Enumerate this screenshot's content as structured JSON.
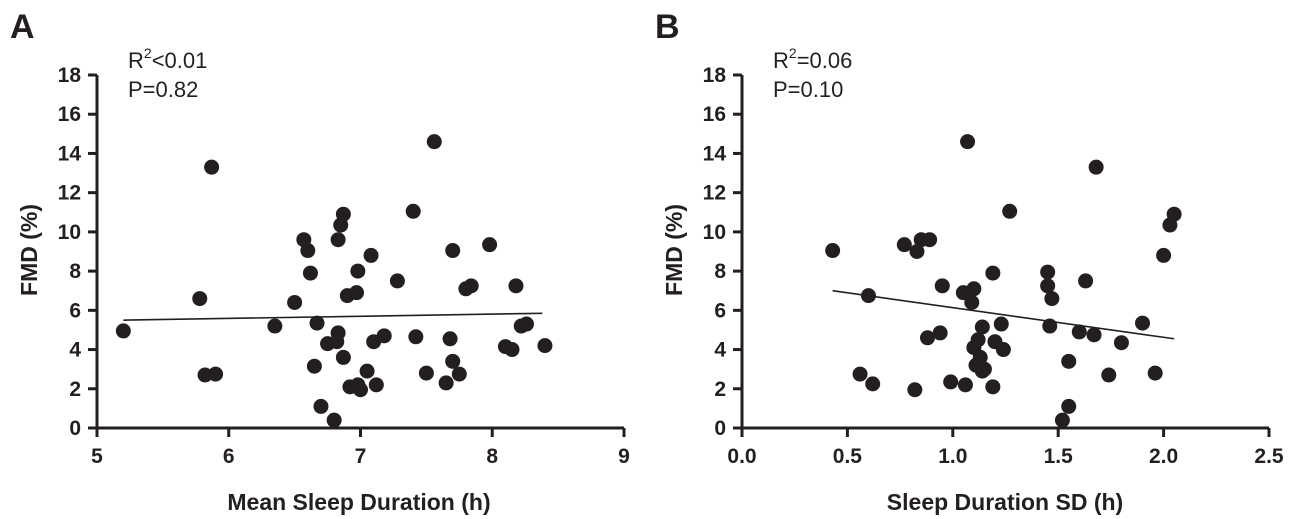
{
  "chart_data": [
    {
      "type": "scatter",
      "panel": "A",
      "xlabel": "Mean Sleep Duration (h)",
      "ylabel": "FMD (%)",
      "xlim": [
        5,
        9
      ],
      "ylim": [
        0,
        18
      ],
      "xticks": [
        5,
        6,
        7,
        8,
        9
      ],
      "xtick_labels": [
        "5",
        "6",
        "7",
        "8",
        "9"
      ],
      "yticks": [
        0,
        2,
        4,
        6,
        8,
        10,
        12,
        14,
        16,
        18
      ],
      "ytick_labels": [
        "0",
        "2",
        "4",
        "6",
        "8",
        "10",
        "12",
        "14",
        "16",
        "18"
      ],
      "stats": {
        "r2_prefix": "R",
        "r2_sup": "2",
        "r2_value": "<0.01",
        "p": "P=0.82"
      },
      "regression": {
        "x": [
          5.2,
          8.38
        ],
        "y": [
          5.5,
          5.85
        ]
      },
      "points": [
        [
          5.2,
          4.95
        ],
        [
          5.78,
          6.6
        ],
        [
          5.82,
          2.7
        ],
        [
          5.87,
          13.3
        ],
        [
          5.9,
          2.75
        ],
        [
          6.35,
          5.2
        ],
        [
          6.5,
          6.4
        ],
        [
          6.57,
          9.6
        ],
        [
          6.6,
          9.05
        ],
        [
          6.62,
          7.9
        ],
        [
          6.65,
          3.15
        ],
        [
          6.67,
          5.35
        ],
        [
          6.7,
          1.1
        ],
        [
          6.75,
          4.3
        ],
        [
          6.8,
          0.4
        ],
        [
          6.82,
          4.4
        ],
        [
          6.83,
          4.85
        ],
        [
          6.83,
          9.6
        ],
        [
          6.85,
          10.35
        ],
        [
          6.87,
          10.9
        ],
        [
          6.87,
          3.6
        ],
        [
          6.9,
          6.75
        ],
        [
          6.92,
          2.1
        ],
        [
          6.97,
          6.9
        ],
        [
          6.98,
          8.0
        ],
        [
          6.98,
          2.2
        ],
        [
          7.0,
          1.95
        ],
        [
          7.05,
          2.9
        ],
        [
          7.08,
          8.8
        ],
        [
          7.1,
          4.4
        ],
        [
          7.12,
          2.2
        ],
        [
          7.18,
          4.7
        ],
        [
          7.28,
          7.5
        ],
        [
          7.4,
          11.05
        ],
        [
          7.42,
          4.65
        ],
        [
          7.5,
          2.8
        ],
        [
          7.56,
          14.6
        ],
        [
          7.65,
          2.3
        ],
        [
          7.68,
          4.55
        ],
        [
          7.7,
          9.05
        ],
        [
          7.7,
          3.4
        ],
        [
          7.75,
          2.75
        ],
        [
          7.8,
          7.1
        ],
        [
          7.84,
          7.25
        ],
        [
          7.98,
          9.35
        ],
        [
          8.1,
          4.15
        ],
        [
          8.15,
          4.0
        ],
        [
          8.18,
          7.25
        ],
        [
          8.22,
          5.2
        ],
        [
          8.26,
          5.3
        ],
        [
          8.4,
          4.2
        ]
      ]
    },
    {
      "type": "scatter",
      "panel": "B",
      "xlabel": "Sleep Duration SD (h)",
      "ylabel": "FMD (%)",
      "xlim": [
        0,
        2.5
      ],
      "ylim": [
        0,
        18
      ],
      "xticks": [
        0,
        0.5,
        1.0,
        1.5,
        2.0,
        2.5
      ],
      "xtick_labels": [
        "0.0",
        "0.5",
        "1.0",
        "1.5",
        "2.0",
        "2.5"
      ],
      "yticks": [
        0,
        2,
        4,
        6,
        8,
        10,
        12,
        14,
        16,
        18
      ],
      "ytick_labels": [
        "0",
        "2",
        "4",
        "6",
        "8",
        "10",
        "12",
        "14",
        "16",
        "18"
      ],
      "stats": {
        "r2_prefix": "R",
        "r2_sup": "2",
        "r2_value": "=0.06",
        "p": "P=0.10"
      },
      "regression": {
        "x": [
          0.43,
          2.05
        ],
        "y": [
          7.0,
          4.55
        ]
      },
      "points": [
        [
          0.43,
          9.05
        ],
        [
          0.56,
          2.75
        ],
        [
          0.6,
          6.75
        ],
        [
          0.62,
          2.25
        ],
        [
          0.77,
          9.35
        ],
        [
          0.82,
          1.95
        ],
        [
          0.83,
          9.0
        ],
        [
          0.85,
          9.6
        ],
        [
          0.88,
          4.6
        ],
        [
          0.89,
          9.6
        ],
        [
          0.94,
          4.85
        ],
        [
          0.95,
          7.25
        ],
        [
          0.99,
          2.35
        ],
        [
          1.05,
          6.9
        ],
        [
          1.06,
          2.2
        ],
        [
          1.07,
          14.6
        ],
        [
          1.09,
          6.4
        ],
        [
          1.1,
          7.1
        ],
        [
          1.1,
          4.1
        ],
        [
          1.11,
          3.2
        ],
        [
          1.12,
          4.5
        ],
        [
          1.13,
          3.6
        ],
        [
          1.14,
          5.15
        ],
        [
          1.14,
          2.9
        ],
        [
          1.15,
          3.0
        ],
        [
          1.19,
          2.1
        ],
        [
          1.19,
          7.9
        ],
        [
          1.2,
          4.4
        ],
        [
          1.23,
          5.3
        ],
        [
          1.24,
          4.0
        ],
        [
          1.27,
          11.05
        ],
        [
          1.45,
          7.95
        ],
        [
          1.45,
          7.25
        ],
        [
          1.46,
          5.2
        ],
        [
          1.47,
          6.6
        ],
        [
          1.52,
          0.4
        ],
        [
          1.55,
          1.1
        ],
        [
          1.55,
          3.4
        ],
        [
          1.6,
          4.9
        ],
        [
          1.63,
          7.5
        ],
        [
          1.67,
          4.75
        ],
        [
          1.68,
          13.3
        ],
        [
          1.74,
          2.7
        ],
        [
          1.8,
          4.35
        ],
        [
          1.9,
          5.35
        ],
        [
          1.96,
          2.8
        ],
        [
          2.0,
          8.8
        ],
        [
          2.03,
          10.35
        ],
        [
          2.05,
          10.9
        ]
      ]
    }
  ]
}
